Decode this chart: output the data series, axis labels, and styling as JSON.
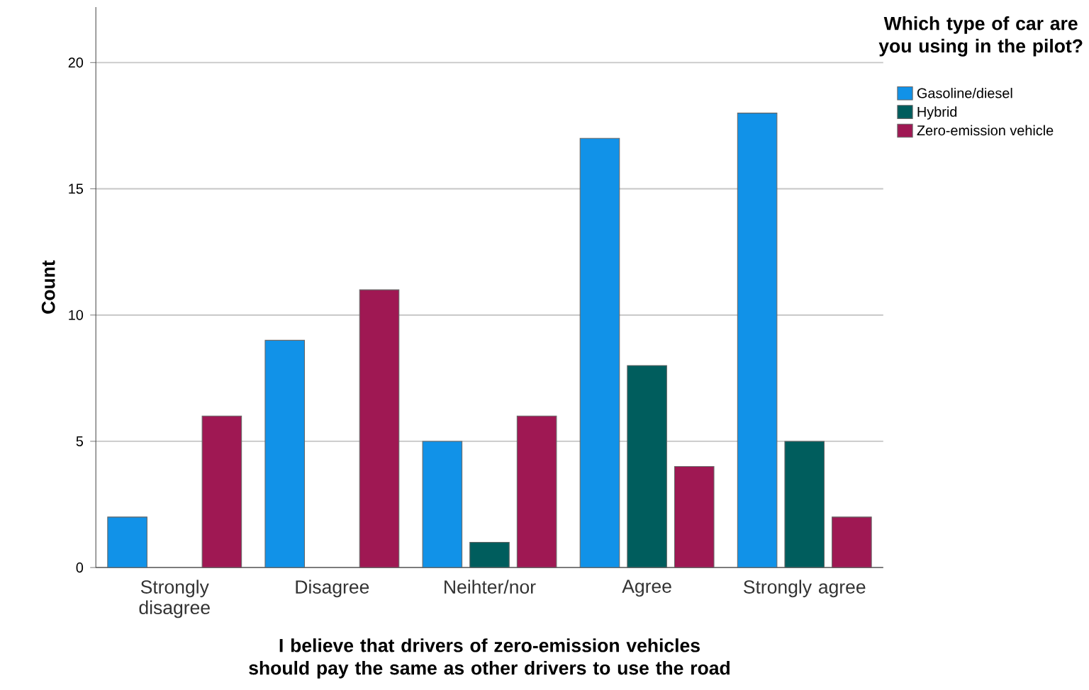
{
  "chart_data": {
    "type": "bar",
    "xlabel": "I believe that drivers of zero-emission vehicles should pay the same as other drivers to use the road",
    "ylabel": "Count",
    "legend_title": "Which type of car are you using in the pilot?",
    "categories": [
      "Strongly disagree",
      "Disagree",
      "Neihter/nor",
      "Agree",
      "Strongly agree"
    ],
    "series": [
      {
        "name": "Gasoline/diesel",
        "color": "#1192e8",
        "values": [
          2,
          9,
          5,
          17,
          18
        ]
      },
      {
        "name": "Hybrid",
        "color": "#005d5d",
        "values": [
          null,
          null,
          1,
          8,
          5
        ]
      },
      {
        "name": "Zero-emission vehicle",
        "color": "#9f1853",
        "values": [
          6,
          11,
          6,
          4,
          2
        ]
      }
    ],
    "ylim": [
      0,
      22.2
    ],
    "yticks": [
      0,
      5,
      10,
      15,
      20
    ],
    "grid": "y",
    "legend": "top right"
  }
}
